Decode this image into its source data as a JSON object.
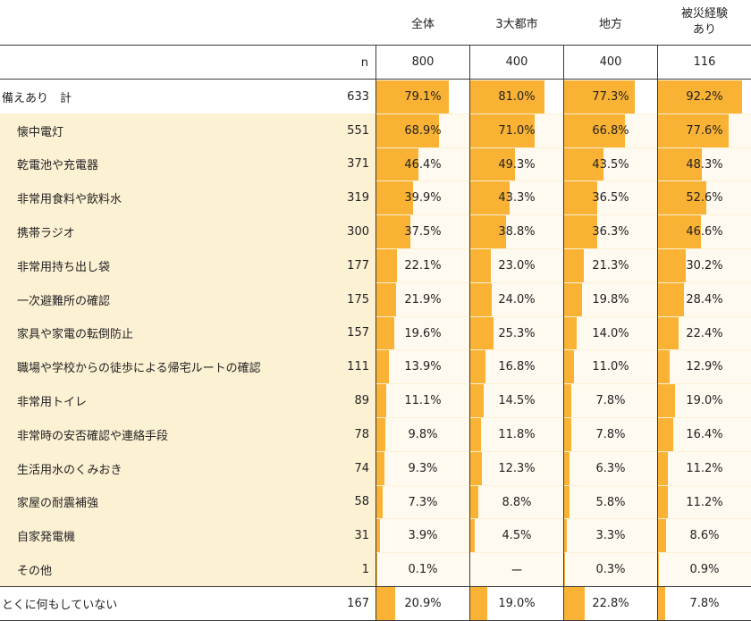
{
  "chart_data": {
    "type": "table",
    "columns": [
      "全体",
      "3大都市",
      "地方",
      "被災経験\nあり"
    ],
    "n_label": "n",
    "n_values": [
      "800",
      "400",
      "400",
      "116"
    ],
    "max_value": 100,
    "rows": [
      {
        "label": "備えあり　計",
        "indent": false,
        "shaded": false,
        "n": "633",
        "values": [
          79.1,
          81.0,
          77.3,
          92.2
        ],
        "labels": [
          "79.1%",
          "81.0%",
          "77.3%",
          "92.2%"
        ]
      },
      {
        "label": "懐中電灯",
        "indent": true,
        "shaded": true,
        "n": "551",
        "values": [
          68.9,
          71.0,
          66.8,
          77.6
        ],
        "labels": [
          "68.9%",
          "71.0%",
          "66.8%",
          "77.6%"
        ]
      },
      {
        "label": "乾電池や充電器",
        "indent": true,
        "shaded": true,
        "n": "371",
        "values": [
          46.4,
          49.3,
          43.5,
          48.3
        ],
        "labels": [
          "46.4%",
          "49.3%",
          "43.5%",
          "48.3%"
        ]
      },
      {
        "label": "非常用食料や飲料水",
        "indent": true,
        "shaded": true,
        "n": "319",
        "values": [
          39.9,
          43.3,
          36.5,
          52.6
        ],
        "labels": [
          "39.9%",
          "43.3%",
          "36.5%",
          "52.6%"
        ]
      },
      {
        "label": "携帯ラジオ",
        "indent": true,
        "shaded": true,
        "n": "300",
        "values": [
          37.5,
          38.8,
          36.3,
          46.6
        ],
        "labels": [
          "37.5%",
          "38.8%",
          "36.3%",
          "46.6%"
        ]
      },
      {
        "label": "非常用持ち出し袋",
        "indent": true,
        "shaded": true,
        "n": "177",
        "values": [
          22.1,
          23.0,
          21.3,
          30.2
        ],
        "labels": [
          "22.1%",
          "23.0%",
          "21.3%",
          "30.2%"
        ]
      },
      {
        "label": "一次避難所の確認",
        "indent": true,
        "shaded": true,
        "n": "175",
        "values": [
          21.9,
          24.0,
          19.8,
          28.4
        ],
        "labels": [
          "21.9%",
          "24.0%",
          "19.8%",
          "28.4%"
        ]
      },
      {
        "label": "家具や家電の転倒防止",
        "indent": true,
        "shaded": true,
        "n": "157",
        "values": [
          19.6,
          25.3,
          14.0,
          22.4
        ],
        "labels": [
          "19.6%",
          "25.3%",
          "14.0%",
          "22.4%"
        ]
      },
      {
        "label": "職場や学校からの徒歩による帰宅ルートの確認",
        "indent": true,
        "shaded": true,
        "n": "111",
        "values": [
          13.9,
          16.8,
          11.0,
          12.9
        ],
        "labels": [
          "13.9%",
          "16.8%",
          "11.0%",
          "12.9%"
        ]
      },
      {
        "label": "非常用トイレ",
        "indent": true,
        "shaded": true,
        "n": "89",
        "values": [
          11.1,
          14.5,
          7.8,
          19.0
        ],
        "labels": [
          "11.1%",
          "14.5%",
          "7.8%",
          "19.0%"
        ]
      },
      {
        "label": "非常時の安否確認や連絡手段",
        "indent": true,
        "shaded": true,
        "n": "78",
        "values": [
          9.8,
          11.8,
          7.8,
          16.4
        ],
        "labels": [
          "9.8%",
          "11.8%",
          "7.8%",
          "16.4%"
        ]
      },
      {
        "label": "生活用水のくみおき",
        "indent": true,
        "shaded": true,
        "n": "74",
        "values": [
          9.3,
          12.3,
          6.3,
          11.2
        ],
        "labels": [
          "9.3%",
          "12.3%",
          "6.3%",
          "11.2%"
        ]
      },
      {
        "label": "家屋の耐震補強",
        "indent": true,
        "shaded": true,
        "n": "58",
        "values": [
          7.3,
          8.8,
          5.8,
          11.2
        ],
        "labels": [
          "7.3%",
          "8.8%",
          "5.8%",
          "11.2%"
        ]
      },
      {
        "label": "自家発電機",
        "indent": true,
        "shaded": true,
        "n": "31",
        "values": [
          3.9,
          4.5,
          3.3,
          8.6
        ],
        "labels": [
          "3.9%",
          "4.5%",
          "3.3%",
          "8.6%"
        ]
      },
      {
        "label": "その他",
        "indent": true,
        "shaded": true,
        "n": "1",
        "values": [
          0.1,
          0,
          0.3,
          0.9
        ],
        "labels": [
          "0.1%",
          "ー",
          "0.3%",
          "0.9%"
        ]
      },
      {
        "label": "とくに何もしていない",
        "indent": false,
        "shaded": false,
        "n": "167",
        "values": [
          20.9,
          19.0,
          22.8,
          7.8
        ],
        "labels": [
          "20.9%",
          "19.0%",
          "22.8%",
          "7.8%"
        ]
      }
    ],
    "colors": {
      "bar": "#f9b233",
      "row_shade": "#fdf1d4",
      "grid": "#3a3a3a"
    }
  }
}
